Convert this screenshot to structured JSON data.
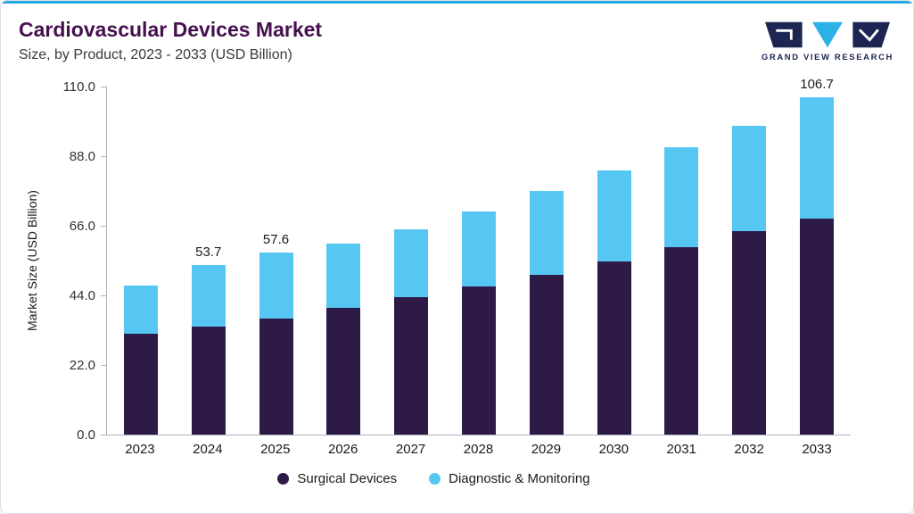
{
  "header": {
    "title": "Cardiovascular Devices Market",
    "subtitle": "Size, by Product, 2023 - 2033 (USD Billion)",
    "logo_text": "GRAND VIEW RESEARCH"
  },
  "colors": {
    "accent": "#29a9e1",
    "title": "#45104e",
    "navy": "#1d2553",
    "axis": "#aab4bf",
    "surgical": "#2e1a47",
    "diagnostic": "#56c7f2"
  },
  "chart_data": {
    "type": "bar",
    "stacked": true,
    "title": "Cardiovascular Devices Market Size, by Product, 2023 - 2033 (USD Billion)",
    "xlabel": "",
    "ylabel": "Market Size (USD Billion)",
    "ylim": [
      0,
      110
    ],
    "yticks": [
      0,
      22,
      44,
      66,
      88,
      110
    ],
    "ytick_labels": [
      "0.0",
      "22.0",
      "44.0",
      "66.0",
      "88.0",
      "110.0"
    ],
    "categories": [
      "2023",
      "2024",
      "2025",
      "2026",
      "2027",
      "2028",
      "2029",
      "2030",
      "2031",
      "2032",
      "2033"
    ],
    "series": [
      {
        "name": "Surgical Devices",
        "color": "#2e1a47",
        "values": [
          31.8,
          34.2,
          36.8,
          40.0,
          43.3,
          46.8,
          50.6,
          54.8,
          59.3,
          64.2,
          68.2
        ]
      },
      {
        "name": "Diagnostic & Monitoring",
        "color": "#56c7f2",
        "values": [
          15.3,
          19.5,
          20.8,
          20.5,
          21.7,
          23.7,
          26.4,
          28.8,
          31.5,
          33.3,
          38.5
        ]
      }
    ],
    "totals": [
      47.1,
      53.7,
      57.6,
      60.5,
      65.0,
      70.5,
      77.0,
      83.6,
      90.8,
      97.5,
      106.7
    ],
    "value_labels": [
      "",
      "53.7",
      "57.6",
      "",
      "",
      "",
      "",
      "",
      "",
      "",
      "106.7"
    ],
    "grid": false,
    "legend_position": "bottom"
  }
}
